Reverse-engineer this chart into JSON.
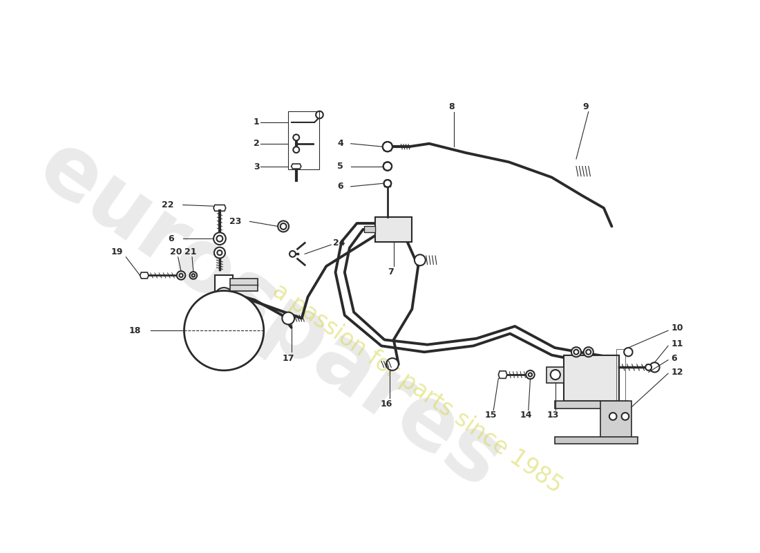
{
  "bg_color": "#ffffff",
  "line_color": "#2a2a2a",
  "fig_width": 11.0,
  "fig_height": 8.0,
  "dpi": 100,
  "label_fontsize": 9,
  "label_fontweight": "bold"
}
